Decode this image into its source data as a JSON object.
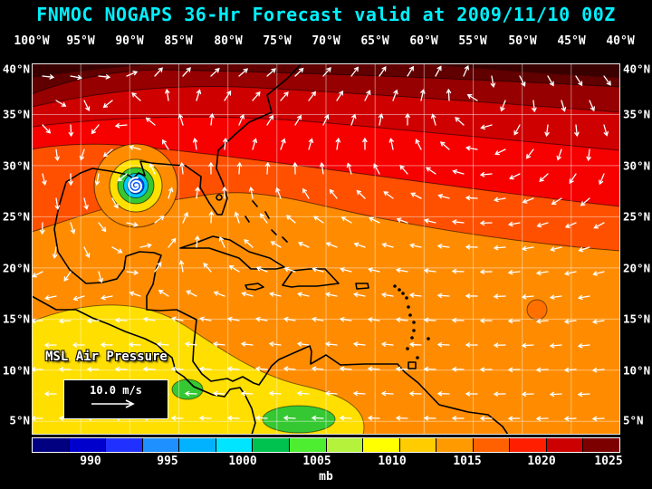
{
  "title": "FNMOC NOGAPS 36-Hr Forecast valid at 2009/11/10 00Z",
  "axes": {
    "lon_labels": [
      "100°W",
      "95°W",
      "90°W",
      "85°W",
      "80°W",
      "75°W",
      "70°W",
      "65°W",
      "60°W",
      "55°W",
      "50°W",
      "45°W",
      "40°W"
    ],
    "lat_labels": [
      "40°N",
      "35°N",
      "30°N",
      "25°N",
      "20°N",
      "15°N",
      "10°N",
      "5°N"
    ]
  },
  "map": {
    "field_label": "MSL Air Pressure",
    "vector_legend_label": "10.0 m/s"
  },
  "colorbar": {
    "unit": "mb",
    "tick_labels": [
      "990",
      "995",
      "1000",
      "1005",
      "1010",
      "1015",
      "1020",
      "1025"
    ],
    "colors": [
      "#000080",
      "#0000cd",
      "#2030ff",
      "#1e90ff",
      "#00b2ff",
      "#00e5ff",
      "#00c24e",
      "#4ded30",
      "#b4f23c",
      "#ffff00",
      "#ffcc00",
      "#ff9a00",
      "#ff6000",
      "#ff1e00",
      "#cc0000",
      "#7d0000"
    ]
  },
  "chart_data": {
    "type": "heatmap",
    "title": "FNMOC NOGAPS 36-Hr Forecast valid at 2009/11/10 00Z",
    "model": "FNMOC NOGAPS",
    "forecast_hour": 36,
    "valid_time": "2009/11/10 00Z",
    "field": "MSL Air Pressure",
    "units": "mb",
    "x_axis": {
      "label": "longitude",
      "ticks_deg_west": [
        100,
        95,
        90,
        85,
        80,
        75,
        70,
        65,
        60,
        55,
        50,
        45,
        40
      ]
    },
    "y_axis": {
      "label": "latitude",
      "ticks_deg_north": [
        40,
        35,
        30,
        25,
        20,
        15,
        10,
        5
      ]
    },
    "grid": true,
    "legend_position": "bottom colorbar",
    "colorbar_ticks_mb": [
      990,
      995,
      1000,
      1005,
      1010,
      1015,
      1020,
      1025
    ],
    "colorbar_range_mb": [
      987.5,
      1027.5
    ],
    "wind_reference_vector_m_s": 10.0,
    "overlay": "10 m wind vectors (white arrows), easterly trades south of 20N, westerlies along 35-40N, cyclonic inflow around the storm",
    "features": [
      {
        "name": "tropical cyclone with spiral symbol",
        "lat_deg_n": 28,
        "lon_deg_w": 90,
        "central_pressure_mb": "< 990",
        "rings_mb": [
          1010,
          1005,
          1000,
          995,
          990
        ]
      },
      {
        "name": "strong high-pressure band across north edge",
        "extent_lat_deg_n": [
          35,
          40
        ],
        "pressure_mb": "1024-1028"
      },
      {
        "name": "pressure decreases southward across Caribbean",
        "pressure_mb": "1010-1015"
      },
      {
        "name": "weak low bottom-center (S. America coast)",
        "lat_deg_n": 5,
        "lon_deg_w": 74,
        "pressure_mb": "~1005"
      },
      {
        "name": "weak low near Costa Rica / Panama",
        "lat_deg_n": 8,
        "lon_deg_w": 85,
        "pressure_mb": "~1005"
      }
    ]
  }
}
